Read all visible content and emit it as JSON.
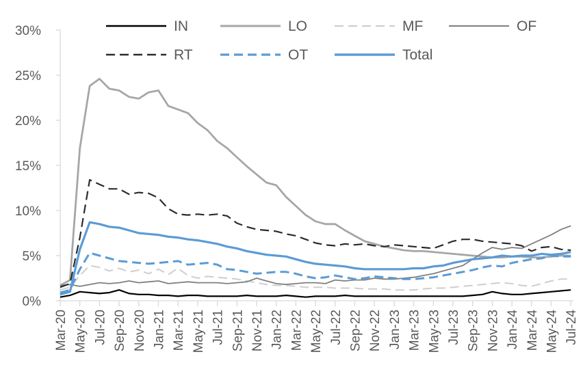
{
  "chart": {
    "background": "#ffffff",
    "text_color": "#595959",
    "axis_color": "#d9d9d9",
    "accent_blue": "#5b9bd5"
  },
  "chart_data": {
    "type": "line",
    "title": "",
    "xlabel": "",
    "ylabel": "",
    "grid": false,
    "legend_position": "top",
    "ylim": [
      0,
      30
    ],
    "y_ticks": [
      "0%",
      "5%",
      "10%",
      "15%",
      "20%",
      "25%",
      "30%"
    ],
    "x": [
      "Mar-20",
      "Apr-20",
      "May-20",
      "Jun-20",
      "Jul-20",
      "Aug-20",
      "Sep-20",
      "Oct-20",
      "Nov-20",
      "Dec-20",
      "Jan-21",
      "Feb-21",
      "Mar-21",
      "Apr-21",
      "May-21",
      "Jun-21",
      "Jul-21",
      "Aug-21",
      "Sep-21",
      "Oct-21",
      "Nov-21",
      "Dec-21",
      "Jan-22",
      "Feb-22",
      "Mar-22",
      "Apr-22",
      "May-22",
      "Jun-22",
      "Jul-22",
      "Aug-22",
      "Sep-22",
      "Oct-22",
      "Nov-22",
      "Dec-22",
      "Jan-23",
      "Feb-23",
      "Mar-23",
      "Apr-23",
      "May-23",
      "Jun-23",
      "Jul-23",
      "Aug-23",
      "Sep-23",
      "Oct-23",
      "Nov-23",
      "Dec-23",
      "Jan-24",
      "Feb-24",
      "Mar-24",
      "Apr-24",
      "May-24",
      "Jun-24",
      "Jul-24"
    ],
    "x_label_every": 2,
    "series": [
      {
        "name": "IN",
        "color": "#000000",
        "style": "solid",
        "width": 2.2,
        "values": [
          0.4,
          0.6,
          1.0,
          0.9,
          0.8,
          0.9,
          1.2,
          0.8,
          0.7,
          0.7,
          0.6,
          0.6,
          0.5,
          0.6,
          0.6,
          0.5,
          0.5,
          0.5,
          0.5,
          0.6,
          0.5,
          0.5,
          0.5,
          0.6,
          0.5,
          0.4,
          0.5,
          0.5,
          0.5,
          0.6,
          0.5,
          0.5,
          0.5,
          0.5,
          0.5,
          0.5,
          0.5,
          0.5,
          0.5,
          0.5,
          0.5,
          0.5,
          0.6,
          0.7,
          1.0,
          0.8,
          0.7,
          0.7,
          0.8,
          0.9,
          1.0,
          1.1,
          1.2
        ]
      },
      {
        "name": "LO",
        "color": "#a6a6a6",
        "style": "solid",
        "width": 2.8,
        "values": [
          1.7,
          2.3,
          16.9,
          23.8,
          24.6,
          23.5,
          23.3,
          22.6,
          22.4,
          23.1,
          23.3,
          21.6,
          21.2,
          20.8,
          19.7,
          18.9,
          17.7,
          16.9,
          15.9,
          14.9,
          14.0,
          13.1,
          12.8,
          11.5,
          10.5,
          9.5,
          8.8,
          8.5,
          8.5,
          7.8,
          7.2,
          6.6,
          6.3,
          6.0,
          5.8,
          5.6,
          5.5,
          5.5,
          5.4,
          5.3,
          5.2,
          5.1,
          5.0,
          4.9,
          4.8,
          4.8,
          4.9,
          4.9,
          4.8,
          4.8,
          4.9,
          5.0,
          5.0
        ]
      },
      {
        "name": "MF",
        "color": "#cfcdcd",
        "style": "dashed",
        "width": 2.0,
        "values": [
          1.2,
          1.5,
          2.8,
          3.9,
          3.7,
          3.3,
          3.6,
          3.2,
          3.4,
          3.0,
          3.5,
          2.9,
          3.6,
          2.8,
          2.5,
          2.7,
          2.6,
          2.5,
          2.4,
          2.2,
          2.0,
          1.8,
          1.7,
          1.7,
          1.6,
          1.5,
          1.5,
          1.5,
          1.4,
          1.4,
          1.4,
          1.3,
          1.3,
          1.3,
          1.2,
          1.2,
          1.2,
          1.3,
          1.4,
          1.4,
          1.5,
          1.6,
          1.7,
          1.8,
          1.9,
          2.0,
          1.9,
          1.7,
          1.6,
          1.9,
          2.2,
          2.4,
          2.4
        ]
      },
      {
        "name": "OF",
        "color": "#7f7f7f",
        "style": "solid",
        "width": 1.8,
        "values": [
          1.7,
          1.8,
          1.6,
          1.8,
          2.0,
          1.9,
          2.0,
          2.2,
          2.0,
          2.1,
          2.2,
          1.9,
          2.0,
          2.1,
          2.0,
          2.0,
          2.0,
          1.9,
          2.0,
          2.1,
          2.5,
          2.2,
          1.9,
          1.8,
          1.9,
          2.0,
          2.0,
          1.9,
          2.3,
          2.2,
          2.3,
          2.3,
          2.5,
          2.4,
          2.4,
          2.5,
          2.6,
          2.8,
          3.0,
          3.3,
          3.6,
          3.9,
          4.6,
          5.3,
          5.9,
          5.7,
          5.9,
          5.8,
          6.3,
          6.8,
          7.3,
          7.9,
          8.3
        ]
      },
      {
        "name": "RT",
        "color": "#2b2b2b",
        "style": "dashed",
        "width": 2.2,
        "values": [
          1.5,
          1.9,
          7.0,
          13.4,
          12.9,
          12.4,
          12.4,
          11.8,
          12.0,
          11.9,
          11.4,
          10.2,
          9.6,
          9.5,
          9.6,
          9.5,
          9.6,
          9.4,
          8.6,
          8.2,
          7.9,
          7.8,
          7.7,
          7.4,
          7.2,
          6.8,
          6.4,
          6.2,
          6.1,
          6.3,
          6.2,
          6.3,
          6.1,
          6.0,
          6.2,
          6.1,
          6.0,
          5.9,
          5.8,
          6.2,
          6.6,
          6.8,
          6.8,
          6.6,
          6.5,
          6.4,
          6.3,
          6.1,
          5.5,
          5.9,
          6.0,
          5.7,
          5.6
        ]
      },
      {
        "name": "OT",
        "color": "#5b9bd5",
        "style": "dashed",
        "width": 3.0,
        "values": [
          0.9,
          1.2,
          3.5,
          5.3,
          5.0,
          4.7,
          4.4,
          4.3,
          4.2,
          4.1,
          4.2,
          4.3,
          4.4,
          4.0,
          4.1,
          4.2,
          4.0,
          3.5,
          3.4,
          3.2,
          3.0,
          3.1,
          3.2,
          3.2,
          3.0,
          2.7,
          2.5,
          2.6,
          2.8,
          2.6,
          2.4,
          2.5,
          2.7,
          2.6,
          2.5,
          2.4,
          2.4,
          2.5,
          2.6,
          2.8,
          3.0,
          3.2,
          3.4,
          3.7,
          3.9,
          3.8,
          4.2,
          4.4,
          4.6,
          4.7,
          5.0,
          4.9,
          4.9
        ]
      },
      {
        "name": "Total",
        "color": "#5b9bd5",
        "style": "solid",
        "width": 3.2,
        "values": [
          0.7,
          1.0,
          5.7,
          8.7,
          8.5,
          8.2,
          8.1,
          7.8,
          7.5,
          7.4,
          7.3,
          7.1,
          7.0,
          6.8,
          6.7,
          6.5,
          6.3,
          6.0,
          5.8,
          5.5,
          5.3,
          5.1,
          5.0,
          4.9,
          4.6,
          4.3,
          4.1,
          4.0,
          3.9,
          3.8,
          3.6,
          3.5,
          3.5,
          3.5,
          3.5,
          3.5,
          3.6,
          3.6,
          3.8,
          3.9,
          4.2,
          4.4,
          4.6,
          4.7,
          4.8,
          5.0,
          4.9,
          5.0,
          5.0,
          5.2,
          5.1,
          5.2,
          5.4
        ]
      }
    ]
  }
}
